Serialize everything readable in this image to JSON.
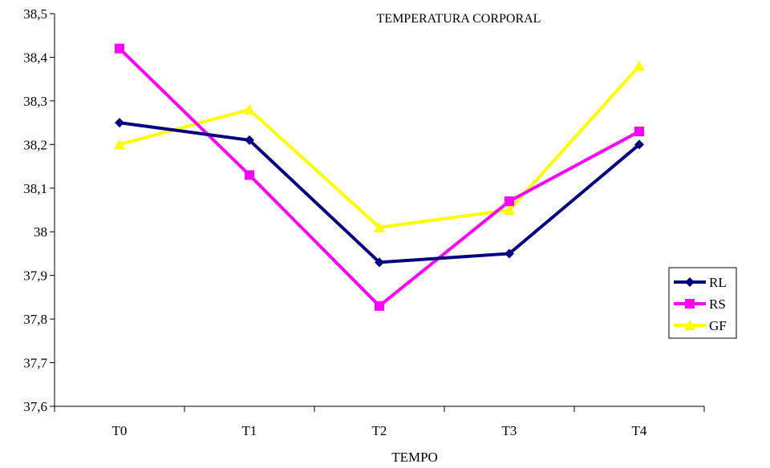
{
  "chart_data": {
    "type": "line",
    "title": "TEMPERATURA CORPORAL",
    "xlabel": "TEMPO",
    "ylabel": "",
    "categories": [
      "T0",
      "T1",
      "T2",
      "T3",
      "T4"
    ],
    "ylim": [
      37.6,
      38.5
    ],
    "y_ticks": [
      37.6,
      37.7,
      37.8,
      37.9,
      38.0,
      38.1,
      38.2,
      38.3,
      38.4,
      38.5
    ],
    "y_tick_labels": [
      "37,6",
      "37,7",
      "37,8",
      "37,9",
      "38",
      "38,1",
      "38,2",
      "38,3",
      "38,4",
      "38,5"
    ],
    "grid": false,
    "legend_position": "right",
    "series": [
      {
        "name": "RL",
        "color": "#000080",
        "marker": "diamond",
        "values": [
          38.25,
          38.21,
          37.93,
          37.95,
          38.2
        ]
      },
      {
        "name": "RS",
        "color": "#FF00FF",
        "marker": "square",
        "values": [
          38.42,
          38.13,
          37.83,
          38.07,
          38.23
        ]
      },
      {
        "name": "GF",
        "color": "#FFFF00",
        "marker": "triangle",
        "values": [
          38.2,
          38.28,
          38.01,
          38.05,
          38.38
        ]
      }
    ]
  }
}
